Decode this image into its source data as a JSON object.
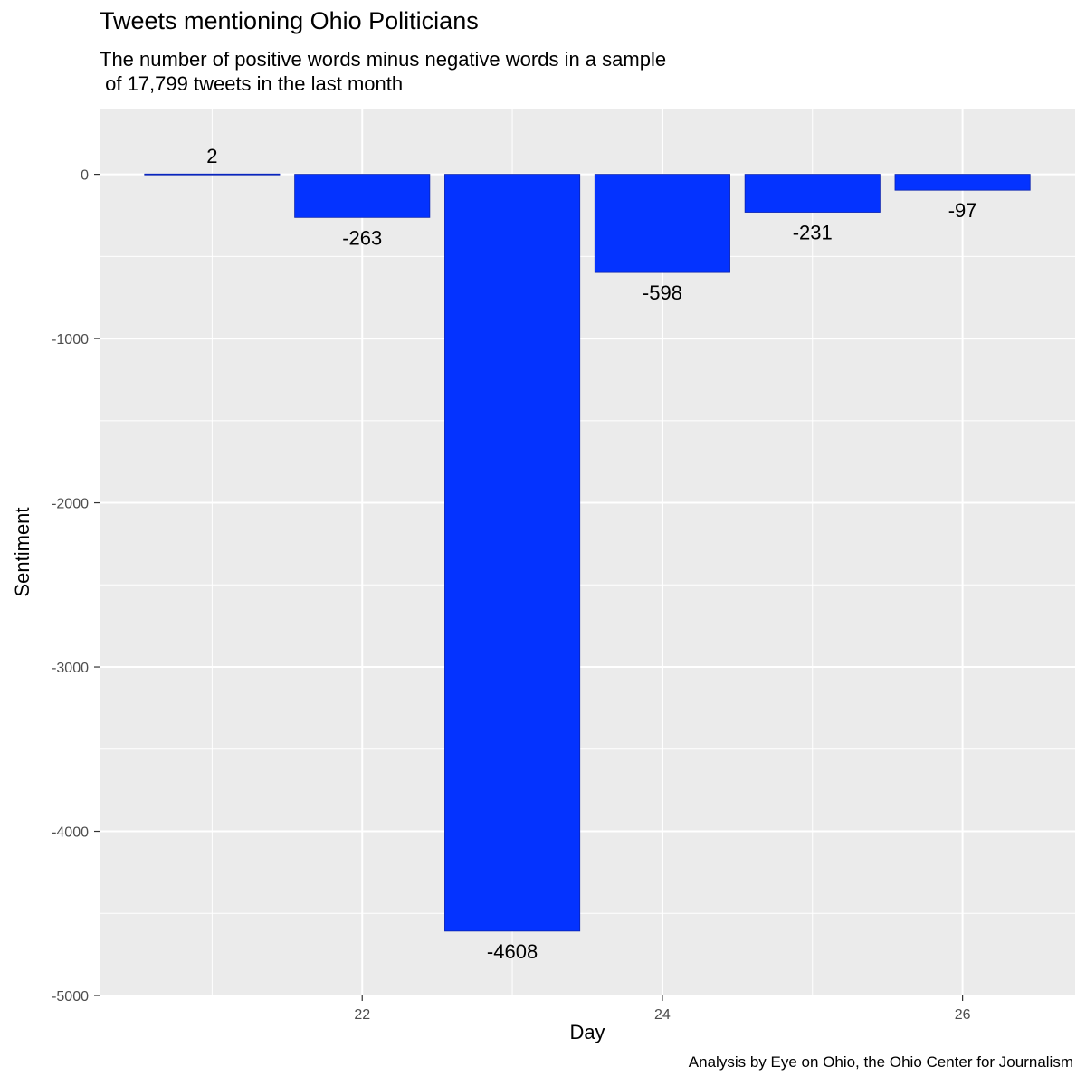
{
  "chart_data": {
    "type": "bar",
    "title": "Tweets mentioning Ohio Politicians",
    "subtitle": "The number of positive words minus negative words in a sample\n of 17,799 tweets in the last month",
    "caption": "Analysis by Eye on Ohio, the Ohio Center for Journalism",
    "xlabel": "Day",
    "ylabel": "Sentiment",
    "x": [
      21,
      22,
      23,
      24,
      25,
      26
    ],
    "values": [
      2,
      -263,
      -4608,
      -598,
      -231,
      -97
    ],
    "data_labels": [
      "2",
      "-263",
      "-4608",
      "-598",
      "-231",
      "-97"
    ],
    "xticks": [
      22,
      24,
      26
    ],
    "yticks": [
      0,
      -1000,
      -2000,
      -3000,
      -4000,
      -5000
    ],
    "xlim": [
      20.25,
      26.75
    ],
    "ylim": [
      -5000,
      400
    ],
    "bar_color": "#0433ff",
    "panel_background": "#ebebeb",
    "grid": true
  }
}
